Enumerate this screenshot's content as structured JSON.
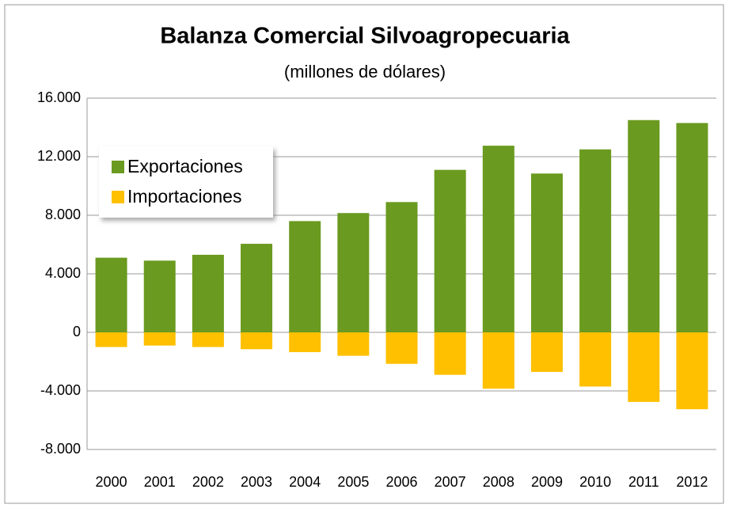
{
  "chart_data": {
    "type": "bar",
    "title": "Balanza Comercial Silvoagropecuaria",
    "subtitle": "(millones de dólares)",
    "categories": [
      "2000",
      "2001",
      "2002",
      "2003",
      "2004",
      "2005",
      "2006",
      "2007",
      "2008",
      "2009",
      "2010",
      "2011",
      "2012"
    ],
    "series": [
      {
        "name": "Exportaciones",
        "color": "#6a9a1f",
        "values": [
          5100,
          4900,
          5300,
          6050,
          7600,
          8150,
          8900,
          11100,
          12750,
          10850,
          12500,
          14500,
          14300
        ]
      },
      {
        "name": "Importaciones",
        "color": "#ffc000",
        "values": [
          -1000,
          -900,
          -1000,
          -1150,
          -1350,
          -1600,
          -2150,
          -2900,
          -3850,
          -2700,
          -3700,
          -4750,
          -5250
        ]
      }
    ],
    "ylim": [
      -8000,
      16000
    ],
    "yticks": [
      {
        "value": -8000,
        "label": "-8.000"
      },
      {
        "value": -4000,
        "label": "-4.000"
      },
      0,
      {
        "value": 4000,
        "label": "4.000"
      },
      {
        "value": 8000,
        "label": "8.000"
      },
      {
        "value": 12000,
        "label": "12.000"
      },
      {
        "value": 16000,
        "label": "16.000"
      }
    ],
    "grid": true,
    "legend": "upper left"
  }
}
